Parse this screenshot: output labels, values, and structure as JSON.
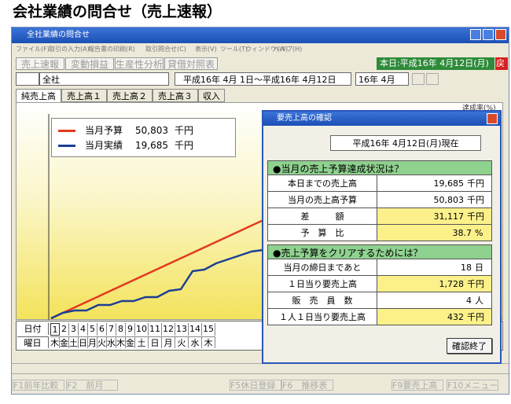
{
  "heading": "会社業績の問合せ（売上速報）",
  "window": {
    "title": "全社業績の問合せ",
    "menu": [
      "ファイル(F)",
      "取引の入力(A)",
      "報告書の印刷(R)",
      "取引問合せ(C)",
      "表示(V)",
      "ツール(T)",
      "ウィンドウ(W)",
      "ヘルプ(H)"
    ],
    "toolbar": [
      "売上速報",
      "変動損益",
      "生産性分析",
      "貸借対照表"
    ],
    "today": "本日:平成16年 4月12日(月)",
    "back": "戻"
  },
  "filter": {
    "scope": "全社",
    "period": "平成16年 4月 1日～平成16年 4月12日",
    "month": "16年 4月"
  },
  "tabs": [
    "純売上高",
    "売上高１",
    "売上高２",
    "売上高３",
    "収入"
  ],
  "rate_label": "達成率(%)",
  "legend": [
    {
      "label": "当月予算",
      "value": "50,803",
      "unit": "千円"
    },
    {
      "label": "当月実績",
      "value": "19,685",
      "unit": "千円"
    }
  ],
  "calendar": {
    "date_label": "日付",
    "days": [
      "1",
      "2",
      "3",
      "4",
      "5",
      "6",
      "7",
      "8",
      "9",
      "10",
      "11",
      "12",
      "13",
      "14",
      "15"
    ],
    "weekday_label": "曜日",
    "weekdays": [
      "木",
      "金",
      "土",
      "日",
      "月",
      "火",
      "水",
      "木",
      "金",
      "土",
      "日",
      "月",
      "火",
      "水",
      "木"
    ]
  },
  "dialog": {
    "title": "要売上高の確認",
    "as_of": "平成16年 4月12日(月)現在",
    "sections": [
      {
        "heading": "●当月の売上予算達成状況は？",
        "rows": [
          {
            "label": "本日までの売上高",
            "value": "19,685",
            "unit": "千円"
          },
          {
            "label": "当月の売上高予算",
            "value": "50,803",
            "unit": "千円"
          },
          {
            "label": "差　　　額",
            "value": "31,117",
            "unit": "千円"
          },
          {
            "label": "予　算　比",
            "value": "38.7",
            "unit": "%"
          }
        ]
      },
      {
        "heading": "●売上予算をクリアするためには？",
        "rows": [
          {
            "label": "当月の締日まであと",
            "value": "18",
            "unit": "日"
          },
          {
            "label": "１日当り要売上高",
            "value": "1,728",
            "unit": "千円"
          },
          {
            "label": "販　売　員　数",
            "value": "4",
            "unit": "人"
          },
          {
            "label": "１人１日当り要売上高",
            "value": "432",
            "unit": "千円"
          }
        ]
      }
    ],
    "button": "確認終了"
  },
  "function_keys": [
    "F1前年比較",
    "F2　前月",
    "F5休日登録",
    "F6　推移表",
    "F9要売上高",
    "F10メニュー"
  ]
}
